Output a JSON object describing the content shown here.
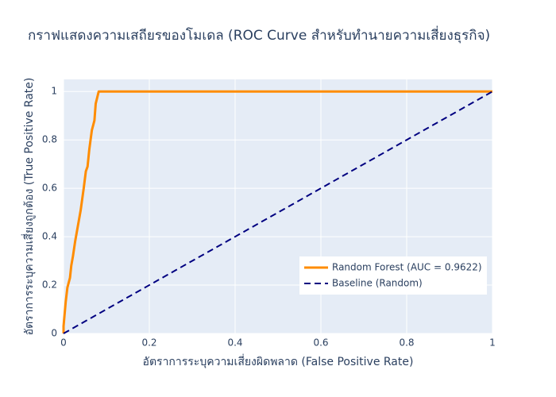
{
  "chart_data": {
    "type": "line",
    "title": "กราฟแสดงความเสถียรของโมเดล (ROC Curve สำหรับทำนายความเสี่ยงธุรกิจ)",
    "x_label": "อัตราการระบุความเสี่ยงผิดพลาด (False Positive Rate)",
    "y_label": "อัตราการระบุความเสี่ยงถูกต้อง (True Positive Rate)",
    "series": [
      {
        "name": "Random Forest (AUC = 0.9622)",
        "color": "#ff8c00",
        "dash": "solid",
        "x": [
          0,
          0,
          0.002,
          0.005,
          0.009,
          0.015,
          0.018,
          0.022,
          0.027,
          0.033,
          0.04,
          0.047,
          0.052,
          0.056,
          0.06,
          0.066,
          0.072,
          0.075,
          0.082,
          1
        ],
        "values": [
          0,
          0.03,
          0.07,
          0.13,
          0.19,
          0.23,
          0.28,
          0.32,
          0.38,
          0.44,
          0.51,
          0.6,
          0.67,
          0.69,
          0.76,
          0.84,
          0.88,
          0.95,
          1,
          1
        ]
      },
      {
        "name": "Baseline (Random)",
        "color": "#000080",
        "dash": "dash",
        "x": [
          0,
          1
        ],
        "values": [
          0,
          1
        ]
      }
    ],
    "xlim": [
      0,
      1
    ],
    "ylim": [
      0,
      1.05
    ],
    "xticks": [
      0,
      0.2,
      0.4,
      0.6,
      0.8,
      1
    ],
    "yticks": [
      0,
      0.2,
      0.4,
      0.6,
      0.8,
      1
    ],
    "grid": true,
    "legend": "lower right"
  }
}
